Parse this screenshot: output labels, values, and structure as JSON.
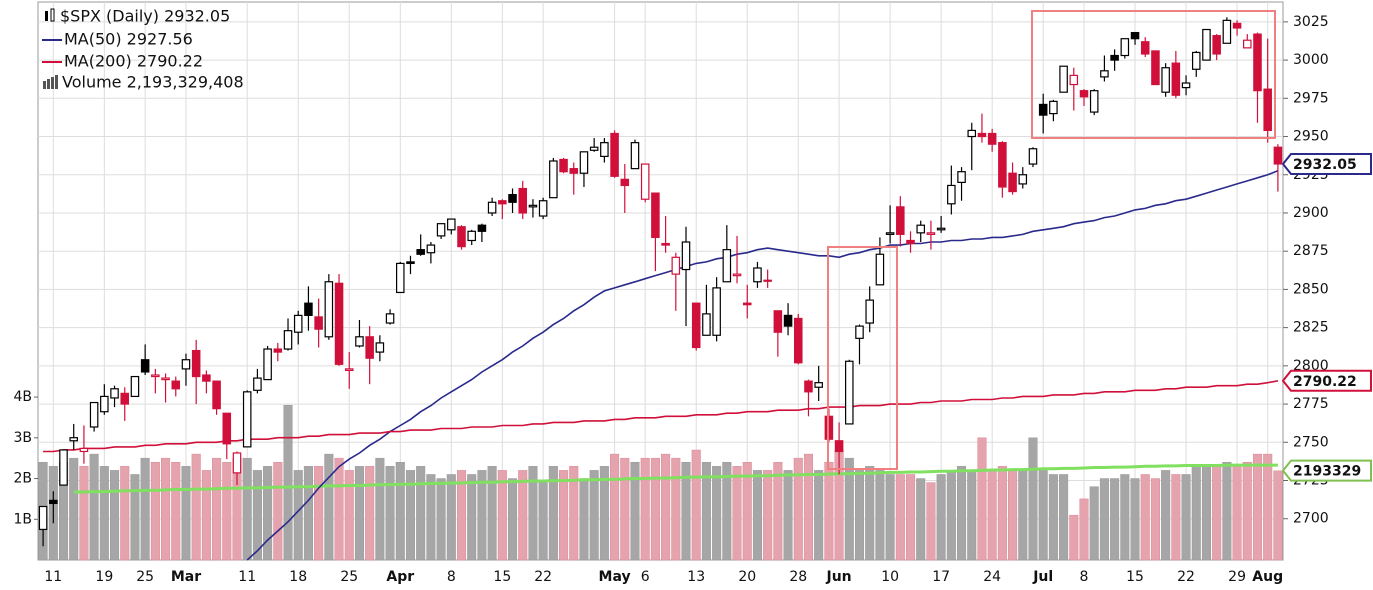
{
  "chart_data": {
    "type": "candlestick",
    "categories": [
      null,
      "11",
      null,
      null,
      null,
      null,
      "19",
      null,
      null,
      null,
      "25",
      null,
      null,
      null,
      "Mar",
      null,
      null,
      null,
      null,
      null,
      "11",
      null,
      null,
      null,
      null,
      "18",
      null,
      null,
      null,
      null,
      "25",
      null,
      null,
      null,
      null,
      "Apr",
      null,
      null,
      null,
      null,
      "8",
      null,
      null,
      null,
      null,
      "15",
      null,
      null,
      null,
      "22",
      null,
      null,
      null,
      null,
      null,
      null,
      "May",
      null,
      null,
      "6",
      null,
      null,
      null,
      null,
      "13",
      null,
      null,
      null,
      null,
      "20",
      null,
      null,
      null,
      null,
      "28",
      null,
      null,
      null,
      "Jun",
      null,
      null,
      null,
      null,
      "10",
      null,
      null,
      null,
      null,
      "17",
      null,
      null,
      null,
      null,
      "24",
      null,
      null,
      null,
      null,
      "Jul",
      null,
      null,
      null,
      "8",
      null,
      null,
      null,
      null,
      "15",
      null,
      null,
      null,
      null,
      "22",
      null,
      null,
      null,
      null,
      "29",
      null,
      null,
      "Aug",
      null
    ],
    "price": {
      "name": "$SPX (Daily) 2932.05",
      "up_color": "#000000",
      "down_color": "#d0103a",
      "open": [
        2693,
        2712,
        2722,
        2751,
        2744,
        2760,
        2770,
        2779,
        2782,
        2780,
        2804,
        2793,
        2791,
        2790,
        2798,
        2810,
        2794,
        2790,
        2769,
        2730,
        2747,
        2784,
        2791,
        2811,
        2811,
        2822,
        2841,
        2832,
        2819,
        2854,
        2797,
        2813,
        2819,
        2809,
        2828,
        2848,
        2868,
        2876,
        2874,
        2885,
        2889,
        2891,
        2882,
        2892,
        2900,
        2908,
        2912,
        2916,
        2904,
        2898,
        2910,
        2935,
        2929,
        2926,
        2941,
        2937,
        2952,
        2922,
        2929,
        2909,
        2913,
        2880,
        2860,
        2863,
        2841,
        2820,
        2820,
        2855,
        2859,
        2841,
        2855,
        2856,
        2836,
        2833,
        2831,
        2790,
        2786,
        2767,
        2751,
        2762,
        2818,
        2828,
        2853,
        2886,
        2904,
        2882,
        2887,
        2886,
        2889,
        2906,
        2920,
        2950,
        2952,
        2952,
        2946,
        2926,
        2919,
        2932,
        2971,
        2965,
        2979,
        2984,
        2980,
        2966,
        2989,
        3003,
        3003,
        3018,
        3012,
        3006,
        2979,
        2998,
        2982,
        2994,
        3000,
        3016,
        3011,
        3024,
        3008,
        3017,
        2981,
        2943
      ],
      "high": [
        2708,
        2718,
        2745,
        2762,
        2761,
        2776,
        2788,
        2787,
        2786,
        2793,
        2814,
        2798,
        2795,
        2793,
        2808,
        2817,
        2797,
        2790,
        2769,
        2744,
        2784,
        2798,
        2813,
        2815,
        2831,
        2836,
        2852,
        2844,
        2860,
        2860,
        2809,
        2830,
        2826,
        2820,
        2837,
        2868,
        2872,
        2886,
        2881,
        2893,
        2896,
        2892,
        2889,
        2893,
        2910,
        2909,
        2916,
        2921,
        2909,
        2910,
        2936,
        2936,
        2933,
        2940,
        2949,
        2949,
        2954,
        2932,
        2948,
        2932,
        2913,
        2898,
        2874,
        2891,
        2841,
        2853,
        2858,
        2892,
        2885,
        2853,
        2868,
        2863,
        2836,
        2841,
        2834,
        2791,
        2800,
        2772,
        2763,
        2804,
        2827,
        2852,
        2884,
        2905,
        2911,
        2888,
        2895,
        2895,
        2898,
        2931,
        2930,
        2959,
        2965,
        2955,
        2947,
        2933,
        2930,
        2943,
        2978,
        2974,
        2996,
        2995,
        2981,
        2981,
        3003,
        3007,
        3014,
        3018,
        3015,
        3006,
        2998,
        3006,
        2990,
        3006,
        3020,
        3017,
        3028,
        3026,
        3017,
        3018,
        3014,
        2945
      ],
      "low": [
        2682,
        2697,
        2722,
        2745,
        2736,
        2757,
        2768,
        2773,
        2764,
        2780,
        2794,
        2782,
        2776,
        2780,
        2787,
        2775,
        2782,
        2768,
        2739,
        2722,
        2747,
        2782,
        2791,
        2803,
        2810,
        2814,
        2823,
        2812,
        2817,
        2800,
        2785,
        2812,
        2788,
        2803,
        2827,
        2848,
        2860,
        2872,
        2867,
        2883,
        2886,
        2876,
        2879,
        2881,
        2898,
        2896,
        2900,
        2896,
        2897,
        2896,
        2910,
        2926,
        2912,
        2917,
        2940,
        2933,
        2923,
        2900,
        2929,
        2907,
        2862,
        2874,
        2836,
        2826,
        2810,
        2820,
        2816,
        2855,
        2854,
        2831,
        2851,
        2851,
        2806,
        2820,
        2801,
        2767,
        2777,
        2750,
        2729,
        2762,
        2801,
        2822,
        2853,
        2880,
        2878,
        2874,
        2881,
        2876,
        2887,
        2899,
        2908,
        2928,
        2946,
        2940,
        2910,
        2912,
        2916,
        2930,
        2952,
        2960,
        2979,
        2967,
        2970,
        2964,
        2986,
        2993,
        3001,
        3010,
        3002,
        2984,
        2976,
        2975,
        2977,
        2989,
        3000,
        3000,
        3011,
        3016,
        3008,
        2959,
        2946,
        2914
      ],
      "close": [
        2708,
        2710,
        2745,
        2753,
        2746,
        2776,
        2780,
        2785,
        2775,
        2793,
        2796,
        2794,
        2792,
        2785,
        2804,
        2793,
        2790,
        2772,
        2749,
        2743,
        2783,
        2792,
        2811,
        2809,
        2823,
        2833,
        2833,
        2824,
        2855,
        2801,
        2798,
        2819,
        2805,
        2815,
        2834,
        2867,
        2867,
        2873,
        2879,
        2893,
        2896,
        2878,
        2888,
        2888,
        2907,
        2906,
        2907,
        2900,
        2905,
        2908,
        2934,
        2927,
        2926,
        2940,
        2943,
        2946,
        2924,
        2918,
        2946,
        2932,
        2884,
        2879,
        2871,
        2881,
        2812,
        2834,
        2851,
        2876,
        2860,
        2840,
        2864,
        2856,
        2822,
        2826,
        2802,
        2783,
        2789,
        2752,
        2744,
        2803,
        2826,
        2843,
        2873,
        2887,
        2886,
        2880,
        2892,
        2887,
        2890,
        2918,
        2927,
        2954,
        2950,
        2945,
        2917,
        2914,
        2925,
        2942,
        2964,
        2973,
        2996,
        2990,
        2976,
        2980,
        2993,
        3000,
        3014,
        3014,
        3004,
        2984,
        2995,
        2977,
        2985,
        3005,
        3020,
        3004,
        3026,
        3021,
        3013,
        2980,
        2954,
        2932.05
      ]
    },
    "series": [
      {
        "name": "MA(50) 2927.56",
        "color": "#2a2a8c",
        "values": [
          null,
          null,
          null,
          null,
          null,
          null,
          null,
          null,
          null,
          null,
          null,
          null,
          null,
          null,
          null,
          null,
          null,
          null,
          null,
          null,
          2673,
          2679,
          2686,
          2692,
          2698,
          2705,
          2712,
          2720,
          2727,
          2734,
          2739,
          2743,
          2748,
          2752,
          2757,
          2761,
          2765,
          2770,
          2774,
          2779,
          2783,
          2787,
          2791,
          2796,
          2800,
          2804,
          2809,
          2813,
          2818,
          2822,
          2827,
          2831,
          2836,
          2840,
          2845,
          2849,
          2851,
          2853,
          2855,
          2857,
          2859,
          2861,
          2863,
          2865,
          2867,
          2868,
          2870,
          2871,
          2873,
          2874,
          2876,
          2877,
          2876,
          2875,
          2874,
          2873,
          2872,
          2872,
          2871,
          2873,
          2874,
          2876,
          2877,
          2879,
          2879,
          2880,
          2880,
          2881,
          2881,
          2882,
          2882,
          2883,
          2883,
          2884,
          2884,
          2885,
          2886,
          2888,
          2889,
          2890,
          2891,
          2893,
          2894,
          2895,
          2897,
          2898,
          2900,
          2902,
          2903,
          2905,
          2906,
          2908,
          2909,
          2911,
          2913,
          2915,
          2917,
          2919,
          2921,
          2923,
          2925,
          2927.56
        ]
      },
      {
        "name": "MA(200) 2790.22",
        "color": "#d0103a",
        "values": [
          2744,
          2744,
          2745,
          2745,
          2746,
          2746,
          2746,
          2747,
          2747,
          2747,
          2748,
          2748,
          2749,
          2749,
          2749,
          2750,
          2750,
          2750,
          2751,
          2751,
          2752,
          2752,
          2752,
          2753,
          2753,
          2753,
          2754,
          2754,
          2755,
          2755,
          2755,
          2756,
          2756,
          2756,
          2757,
          2757,
          2758,
          2758,
          2758,
          2759,
          2759,
          2759,
          2760,
          2760,
          2760,
          2761,
          2761,
          2761,
          2762,
          2762,
          2763,
          2763,
          2763,
          2764,
          2764,
          2764,
          2765,
          2765,
          2766,
          2766,
          2766,
          2767,
          2767,
          2767,
          2768,
          2768,
          2768,
          2769,
          2769,
          2770,
          2770,
          2770,
          2771,
          2771,
          2771,
          2772,
          2772,
          2773,
          2773,
          2773,
          2774,
          2774,
          2774,
          2775,
          2775,
          2775,
          2776,
          2776,
          2777,
          2777,
          2777,
          2778,
          2778,
          2778,
          2779,
          2779,
          2780,
          2780,
          2780,
          2781,
          2781,
          2781,
          2782,
          2782,
          2783,
          2783,
          2783,
          2784,
          2784,
          2784,
          2785,
          2785,
          2786,
          2786,
          2786,
          2787,
          2787,
          2787,
          2788,
          2788,
          2789,
          2790.22
        ]
      }
    ],
    "volume": {
      "name": "Volume 2,193,329,408",
      "up_color": "#a6a6a6",
      "down_color": "#e4a3ad",
      "values": [
        2.4,
        2.3,
        2.4,
        2.5,
        2.3,
        2.6,
        2.3,
        2.2,
        2.3,
        2.1,
        2.5,
        2.4,
        2.5,
        2.4,
        2.3,
        2.6,
        2.2,
        2.5,
        2.4,
        2.5,
        2.5,
        2.2,
        2.3,
        2.4,
        3.8,
        2.2,
        2.3,
        2.3,
        2.6,
        2.5,
        2.2,
        2.3,
        2.3,
        2.5,
        2.3,
        2.4,
        2.2,
        2.3,
        2.1,
        2.0,
        2.1,
        2.2,
        2.1,
        2.2,
        2.3,
        2.2,
        2.0,
        2.2,
        2.3,
        1.9,
        2.3,
        2.2,
        2.3,
        2.0,
        2.2,
        2.3,
        2.6,
        2.5,
        2.4,
        2.5,
        2.5,
        2.6,
        2.5,
        2.4,
        2.7,
        2.4,
        2.3,
        2.4,
        2.3,
        2.4,
        2.2,
        2.2,
        2.4,
        2.2,
        2.5,
        2.6,
        2.2,
        2.4,
        2.7,
        2.5,
        2.2,
        2.3,
        2.2,
        2.1,
        2.1,
        2.1,
        2.0,
        1.9,
        2.1,
        2.2,
        2.3,
        2.2,
        3.0,
        2.2,
        2.3,
        2.2,
        2.2,
        3.0,
        2.2,
        2.1,
        2.1,
        1.1,
        1.5,
        1.8,
        2.0,
        2.0,
        2.1,
        2.0,
        2.1,
        2.0,
        2.2,
        2.1,
        2.1,
        2.3,
        2.3,
        2.3,
        2.4,
        2.3,
        2.4,
        2.6,
        2.6,
        2.19
      ],
      "ma_color": "#80e060",
      "ma_values": [
        null,
        null,
        null,
        1.67,
        1.67,
        1.68,
        1.68,
        1.69,
        1.7,
        1.7,
        1.71,
        1.71,
        1.72,
        1.73,
        1.73,
        1.74,
        1.74,
        1.75,
        1.76,
        1.76,
        1.77,
        1.77,
        1.78,
        1.79,
        1.79,
        1.8,
        1.8,
        1.81,
        1.82,
        1.82,
        1.83,
        1.83,
        1.84,
        1.85,
        1.85,
        1.86,
        1.86,
        1.87,
        1.88,
        1.88,
        1.89,
        1.89,
        1.9,
        1.91,
        1.91,
        1.92,
        1.92,
        1.93,
        1.94,
        1.94,
        1.95,
        1.95,
        1.96,
        1.97,
        1.97,
        1.98,
        1.98,
        1.99,
        2.0,
        2.0,
        2.01,
        2.01,
        2.02,
        2.03,
        2.03,
        2.04,
        2.04,
        2.05,
        2.06,
        2.06,
        2.07,
        2.07,
        2.08,
        2.09,
        2.09,
        2.1,
        2.1,
        2.11,
        2.12,
        2.12,
        2.13,
        2.13,
        2.14,
        2.15,
        2.15,
        2.16,
        2.16,
        2.17,
        2.18,
        2.18,
        2.19,
        2.19,
        2.2,
        2.21,
        2.21,
        2.22,
        2.22,
        2.23,
        2.24,
        2.24,
        2.25,
        2.25,
        2.26,
        2.27,
        2.27,
        2.28,
        2.28,
        2.29,
        2.3,
        2.3,
        2.31,
        2.31,
        2.32,
        2.32,
        2.32,
        2.32,
        2.33,
        2.33,
        2.33,
        2.33,
        2.33,
        2.33
      ],
      "ylim": [
        0,
        13.7
      ],
      "yticks": [
        {
          "value": 1,
          "label": "1B"
        },
        {
          "value": 2,
          "label": "2B"
        },
        {
          "value": 3,
          "label": "3B"
        },
        {
          "value": 4,
          "label": "4B"
        }
      ]
    },
    "ylim": [
      2673,
      3038
    ],
    "yticks": [
      2700,
      2725,
      2750,
      2775,
      2800,
      2825,
      2850,
      2875,
      2900,
      2925,
      2950,
      2975,
      3000,
      3025
    ],
    "grid": true,
    "tags": [
      {
        "value": 2932.05,
        "label": "2932.05",
        "color": "#2a2a8c"
      },
      {
        "value": 2790.22,
        "label": "2790.22",
        "color": "#d0103a"
      },
      {
        "value": 2.193329,
        "label": "2193329",
        "color": "#80c050",
        "axis": "volume"
      }
    ]
  }
}
